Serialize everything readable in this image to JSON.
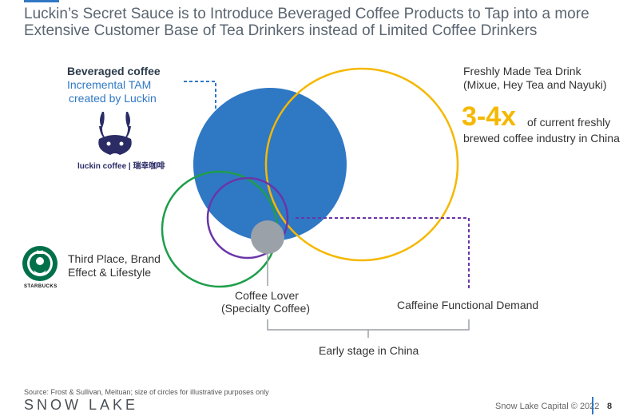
{
  "title": "Luckin’s Secret Sauce is to Introduce Beveraged Coffee Products to Tap into a more Extensive Customer Base of Tea Drinkers instead of Limited Coffee Drinkers",
  "labels": {
    "beveraged_line1": "Beveraged coffee",
    "beveraged_line2": "Incremental TAM",
    "beveraged_line3": "created by Luckin",
    "tea_line1": "Freshly Made Tea Drink",
    "tea_line2": "(Mixue, Hey Tea and Nayuki)",
    "multiplier": "3-4x",
    "multiplier_text1": "of current freshly",
    "multiplier_text2": "brewed coffee industry in China",
    "third_place_line1": "Third Place, Brand",
    "third_place_line2": "Effect & Lifestyle",
    "coffee_lover_line1": "Coffee Lover",
    "coffee_lover_line2": "(Specialty Coffee)",
    "caffeine": "Caffeine Functional Demand",
    "early_stage": "Early stage in China"
  },
  "logos": {
    "luckin": "luckin coffee | 瑞幸咖啡",
    "starbucks": "STARBUCKS"
  },
  "footer": {
    "source": "Source: Frost & Sullivan, Meituan; size of circles for illustrative purposes only",
    "brand": "SNOW LAKE",
    "copyright": "Snow Lake Capital © 2022",
    "page": "8"
  },
  "colors": {
    "blue": "#2f78c4",
    "yellow": "#f5b800",
    "green": "#1e9e4a",
    "purple": "#6a35a8",
    "grey": "#9aa1a8",
    "bracket": "#9aa1a8",
    "luckin_navy": "#2b2b66",
    "starbucks_green": "#00704a"
  }
}
